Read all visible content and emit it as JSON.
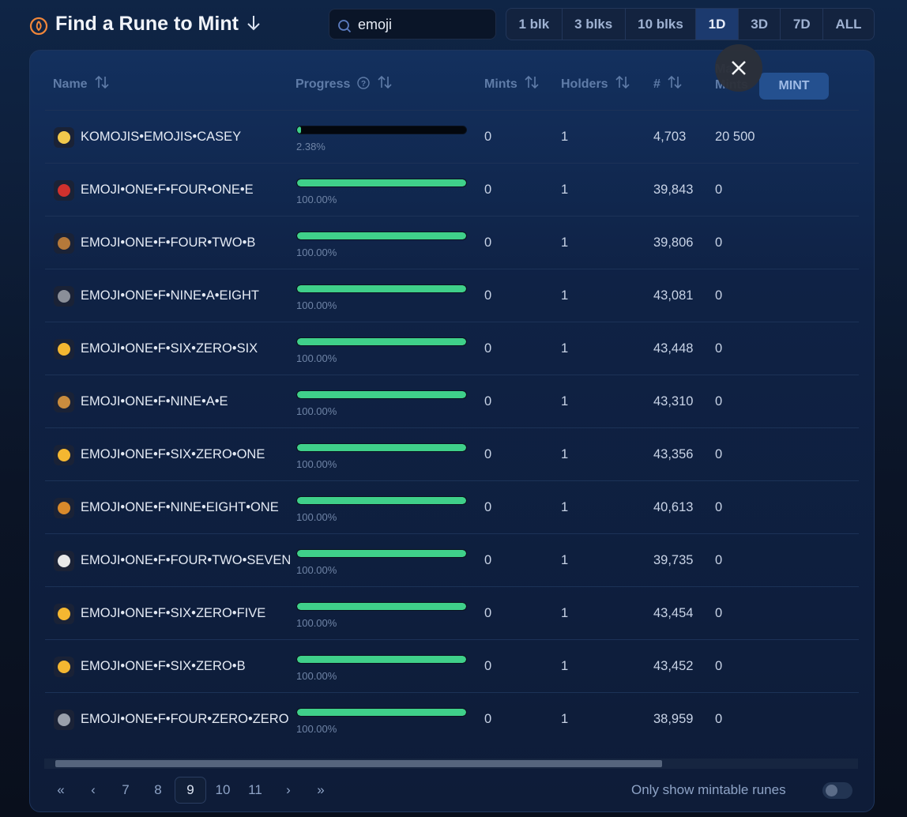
{
  "header": {
    "title": "Find a Rune to Mint"
  },
  "search": {
    "value": "emoji"
  },
  "time_filters": {
    "options": [
      "1 blk",
      "3 blks",
      "10 blks",
      "1D",
      "3D",
      "7D",
      "ALL"
    ],
    "active": "1D"
  },
  "table": {
    "columns": [
      "Name",
      "Progress",
      "Mints",
      "Holders",
      "#",
      "Max Mints"
    ],
    "rows": [
      {
        "name": "KOMOJIS•EMOJIS•CASEY",
        "progress": 2.38,
        "progress_label": "2.38%",
        "mints": "0",
        "holders": "1",
        "number": "4,703",
        "max_mints": "20 500",
        "action": "MINT"
      },
      {
        "name": "EMOJI•ONE•F•FOUR•ONE•E",
        "progress": 100,
        "progress_label": "100.00%",
        "mints": "0",
        "holders": "1",
        "number": "39,843",
        "max_mints": "0"
      },
      {
        "name": "EMOJI•ONE•F•FOUR•TWO•B",
        "progress": 100,
        "progress_label": "100.00%",
        "mints": "0",
        "holders": "1",
        "number": "39,806",
        "max_mints": "0"
      },
      {
        "name": "EMOJI•ONE•F•NINE•A•EIGHT",
        "progress": 100,
        "progress_label": "100.00%",
        "mints": "0",
        "holders": "1",
        "number": "43,081",
        "max_mints": "0"
      },
      {
        "name": "EMOJI•ONE•F•SIX•ZERO•SIX",
        "progress": 100,
        "progress_label": "100.00%",
        "mints": "0",
        "holders": "1",
        "number": "43,448",
        "max_mints": "0"
      },
      {
        "name": "EMOJI•ONE•F•NINE•A•E",
        "progress": 100,
        "progress_label": "100.00%",
        "mints": "0",
        "holders": "1",
        "number": "43,310",
        "max_mints": "0"
      },
      {
        "name": "EMOJI•ONE•F•SIX•ZERO•ONE",
        "progress": 100,
        "progress_label": "100.00%",
        "mints": "0",
        "holders": "1",
        "number": "43,356",
        "max_mints": "0"
      },
      {
        "name": "EMOJI•ONE•F•NINE•EIGHT•ONE",
        "progress": 100,
        "progress_label": "100.00%",
        "mints": "0",
        "holders": "1",
        "number": "40,613",
        "max_mints": "0"
      },
      {
        "name": "EMOJI•ONE•F•FOUR•TWO•SEVEN",
        "progress": 100,
        "progress_label": "100.00%",
        "mints": "0",
        "holders": "1",
        "number": "39,735",
        "max_mints": "0"
      },
      {
        "name": "EMOJI•ONE•F•SIX•ZERO•FIVE",
        "progress": 100,
        "progress_label": "100.00%",
        "mints": "0",
        "holders": "1",
        "number": "43,454",
        "max_mints": "0"
      },
      {
        "name": "EMOJI•ONE•F•SIX•ZERO•B",
        "progress": 100,
        "progress_label": "100.00%",
        "mints": "0",
        "holders": "1",
        "number": "43,452",
        "max_mints": "0"
      },
      {
        "name": "EMOJI•ONE•F•FOUR•ZERO•ZERO",
        "progress": 100,
        "progress_label": "100.00%",
        "mints": "0",
        "holders": "1",
        "number": "38,959",
        "max_mints": "0"
      }
    ]
  },
  "pagination": {
    "pages": [
      "7",
      "8",
      "9",
      "10",
      "11"
    ],
    "current": "9"
  },
  "toggle": {
    "label": "Only show mintable runes"
  }
}
